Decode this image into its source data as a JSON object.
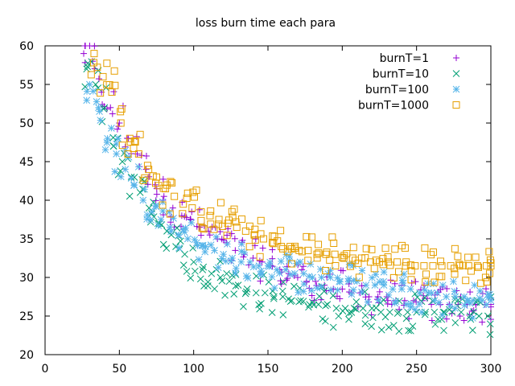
{
  "chart_data": {
    "type": "scatter",
    "title": "loss burn time each para",
    "xlabel": "",
    "ylabel": "",
    "xlim": [
      0,
      300
    ],
    "ylim": [
      20,
      60
    ],
    "x_ticks": [
      0,
      50,
      100,
      150,
      200,
      250,
      300
    ],
    "y_ticks": [
      20,
      25,
      30,
      35,
      40,
      45,
      50,
      55,
      60
    ],
    "legend_position": "top-right",
    "series": [
      {
        "name": "burnT=1",
        "marker": "plus",
        "color": "#9400d3",
        "x": [
          26,
          32,
          38,
          44,
          50,
          56,
          62,
          68,
          74,
          80,
          86,
          92,
          98,
          104,
          110,
          116,
          122,
          128,
          134,
          140,
          146,
          152,
          158,
          164,
          170,
          176,
          182,
          188,
          194,
          200,
          206,
          212,
          218,
          224,
          230,
          236,
          242,
          248,
          254,
          260,
          266,
          272,
          278,
          284,
          290,
          296,
          300
        ],
        "y": [
          59,
          58,
          54,
          52,
          50,
          48,
          46,
          44,
          42,
          40.5,
          39,
          38,
          37.5,
          36.5,
          36,
          35,
          34.5,
          33.5,
          33,
          32.5,
          32,
          31.5,
          31,
          30.5,
          30,
          29.5,
          29.5,
          29,
          28.5,
          28.5,
          28,
          28,
          27.5,
          27.5,
          27.5,
          27,
          27,
          27,
          27,
          26.5,
          26.5,
          26.5,
          26.5,
          26.5,
          26.5,
          26.5,
          26.5
        ]
      },
      {
        "name": "burnT=10",
        "marker": "x",
        "color": "#009e73",
        "x": [
          28,
          34,
          40,
          46,
          52,
          58,
          64,
          70,
          76,
          82,
          88,
          94,
          100,
          106,
          112,
          118,
          124,
          130,
          136,
          142,
          148,
          154,
          160,
          166,
          172,
          178,
          184,
          190,
          196,
          202,
          208,
          214,
          220,
          226,
          232,
          238,
          244,
          250,
          256,
          262,
          268,
          274,
          280,
          286,
          292,
          298
        ],
        "y": [
          57,
          55,
          52,
          47,
          45,
          43,
          41,
          39,
          37,
          36,
          34,
          33,
          32,
          31,
          30.5,
          30,
          29.5,
          29,
          28.5,
          28,
          28,
          27.5,
          27.5,
          27,
          27,
          26.5,
          26.5,
          26.5,
          26,
          26,
          26,
          26,
          26,
          25.5,
          25.5,
          25.5,
          25.5,
          25.5,
          25.5,
          25.5,
          25.5,
          25.5,
          25.5,
          25,
          25,
          25
        ]
      },
      {
        "name": "burnT=100",
        "marker": "asterisk",
        "color": "#56b4e9",
        "x": [
          30,
          36,
          42,
          48,
          54,
          60,
          66,
          72,
          78,
          84,
          90,
          96,
          102,
          108,
          114,
          120,
          126,
          132,
          138,
          144,
          150,
          156,
          162,
          168,
          174,
          180,
          186,
          192,
          198,
          204,
          210,
          216,
          222,
          228,
          234,
          240,
          246,
          252,
          258,
          264,
          270,
          276,
          282,
          288,
          294,
          300
        ],
        "y": [
          55,
          52,
          48,
          46,
          44,
          42,
          40,
          38.5,
          37.5,
          36.5,
          35.5,
          35,
          34.5,
          34,
          33.5,
          33,
          32.5,
          32,
          32,
          31.5,
          31.5,
          31,
          31,
          30.5,
          30.5,
          30,
          30,
          30,
          29.5,
          29.5,
          29.5,
          29,
          29,
          29,
          28.5,
          28.5,
          28.5,
          28,
          28,
          28,
          27.5,
          27.5,
          27.5,
          27,
          27,
          27
        ]
      },
      {
        "name": "burnT=1000",
        "marker": "square",
        "color": "#e69f00",
        "x": [
          33,
          39,
          45,
          51,
          57,
          63,
          69,
          75,
          81,
          87,
          93,
          99,
          105,
          111,
          117,
          123,
          129,
          135,
          141,
          147,
          153,
          159,
          165,
          171,
          177,
          183,
          189,
          195,
          201,
          207,
          213,
          219,
          225,
          231,
          237,
          243,
          249,
          255,
          261,
          267,
          273,
          279,
          285,
          291,
          297,
          300
        ],
        "y": [
          59,
          56,
          54,
          50,
          48,
          46,
          44.5,
          43,
          41.5,
          40.5,
          39.5,
          39,
          38.5,
          38,
          37.5,
          37,
          36.5,
          36,
          35.5,
          35,
          34.5,
          34,
          34,
          33.5,
          33.5,
          33,
          33,
          33,
          32.5,
          32.5,
          32.5,
          32,
          32,
          32,
          32,
          32,
          31.5,
          31.5,
          31.5,
          31.5,
          31.5,
          31.5,
          31.5,
          31.5,
          31.5,
          31.5
        ]
      }
    ]
  }
}
